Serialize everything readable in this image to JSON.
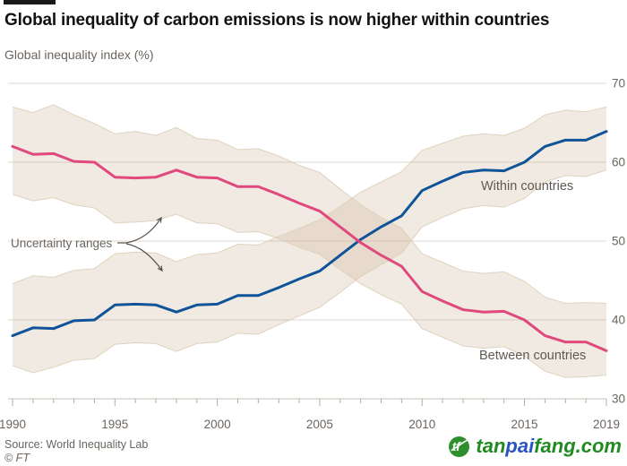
{
  "title": "Global inequality of carbon emissions is now higher within countries",
  "subtitle": "Global inequality index (%)",
  "chart_data": {
    "type": "line",
    "title": "Global inequality of carbon emissions is now higher within countries",
    "ylabel": "Global inequality index (%)",
    "xlabel": "",
    "xlim": [
      1990,
      2019
    ],
    "ylim": [
      30,
      70
    ],
    "yticks": [
      30,
      40,
      50,
      60,
      70
    ],
    "x": [
      1990,
      1991,
      1992,
      1993,
      1994,
      1995,
      1996,
      1997,
      1998,
      1999,
      2000,
      2001,
      2002,
      2003,
      2004,
      2005,
      2006,
      2007,
      2008,
      2009,
      2010,
      2011,
      2012,
      2013,
      2014,
      2015,
      2016,
      2017,
      2018,
      2019
    ],
    "x_labeled_ticks": [
      1990,
      1995,
      2000,
      2005,
      2010,
      2015,
      2019
    ],
    "grid": "horizontal",
    "legend_position": "inline-labels",
    "series": [
      {
        "name": "Within countries",
        "color": "#0f5499",
        "values": [
          38.0,
          39.0,
          38.9,
          39.9,
          40.0,
          41.9,
          42.0,
          41.9,
          41.0,
          41.9,
          42.0,
          43.1,
          43.1,
          44.1,
          45.2,
          46.2,
          48.2,
          50.2,
          51.8,
          53.2,
          56.4,
          57.6,
          58.7,
          59.0,
          58.9,
          60.0,
          62.0,
          62.8,
          62.8,
          63.9
        ],
        "band_upper": [
          44.6,
          45.6,
          45.4,
          46.3,
          46.5,
          48.4,
          48.6,
          48.5,
          47.4,
          48.3,
          48.5,
          49.6,
          49.5,
          50.6,
          51.6,
          52.7,
          54.4,
          56.2,
          57.5,
          58.8,
          61.5,
          62.4,
          63.3,
          63.6,
          63.4,
          64.3,
          66.0,
          66.6,
          66.4,
          67.0
        ],
        "band_lower": [
          34.2,
          33.3,
          34.0,
          34.9,
          35.1,
          36.9,
          37.1,
          37.0,
          36.0,
          37.0,
          37.2,
          38.3,
          38.2,
          39.4,
          40.5,
          41.6,
          43.5,
          45.5,
          47.0,
          48.5,
          51.8,
          53.0,
          54.1,
          54.5,
          54.3,
          55.4,
          57.5,
          58.3,
          58.2,
          59.0
        ]
      },
      {
        "name": "Between countries",
        "color": "#e0497e",
        "values": [
          62.0,
          61.0,
          61.1,
          60.1,
          60.0,
          58.1,
          58.0,
          58.1,
          59.0,
          58.1,
          58.0,
          56.9,
          56.9,
          55.9,
          54.8,
          53.8,
          51.8,
          49.8,
          48.2,
          46.8,
          43.6,
          42.4,
          41.3,
          41.0,
          41.1,
          40.0,
          38.0,
          37.2,
          37.2,
          36.1
        ],
        "band_upper": [
          67.0,
          66.3,
          67.3,
          66.0,
          64.9,
          63.6,
          63.9,
          63.4,
          64.4,
          63.0,
          62.8,
          61.6,
          61.7,
          60.8,
          59.6,
          58.7,
          56.6,
          54.6,
          53.0,
          51.6,
          48.4,
          47.3,
          46.2,
          45.9,
          46.1,
          44.9,
          42.9,
          42.1,
          42.2,
          42.1
        ],
        "band_lower": [
          55.9,
          55.1,
          55.5,
          54.6,
          54.2,
          52.3,
          52.4,
          52.6,
          53.4,
          52.3,
          52.2,
          51.1,
          51.2,
          50.3,
          49.2,
          48.3,
          46.4,
          44.6,
          43.2,
          42.0,
          38.9,
          37.8,
          36.7,
          36.4,
          36.6,
          35.4,
          33.5,
          32.7,
          32.8,
          33.0
        ]
      }
    ],
    "band": {
      "fill": "#cdb194",
      "opacity": 0.27,
      "edge": "#dbccb6"
    },
    "annotations": {
      "uncertainty_label": "Uncertainty ranges",
      "within_label": "Within countries",
      "between_label": "Between countries"
    }
  },
  "footer": {
    "source": "Source: World Inequality Lab",
    "credit": "© FT"
  },
  "logo": {
    "icon": "tanpaifang-leaf-icon",
    "icon_color": "#2e8f2d",
    "segments": [
      {
        "text": "tan",
        "color": "#218a21"
      },
      {
        "text": "pai",
        "color": "#2a53c3"
      },
      {
        "text": "fang",
        "color": "#218a21"
      },
      {
        "text": ".com",
        "color": "#218a21"
      }
    ]
  }
}
